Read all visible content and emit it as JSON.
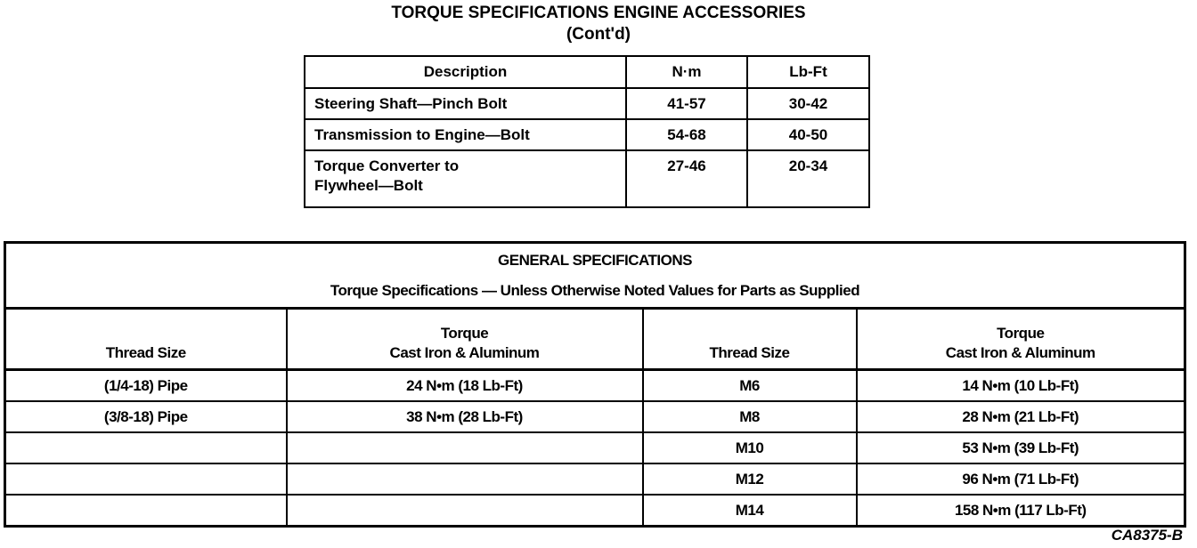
{
  "title": {
    "line1": "TORQUE SPECIFICATIONS ENGINE ACCESSORIES",
    "line2": "(Cont'd)"
  },
  "accessories": {
    "headers": [
      "Description",
      "N·m",
      "Lb-Ft"
    ],
    "rows": [
      {
        "description": "Steering Shaft—Pinch Bolt",
        "nm": "41-57",
        "lbft": "30-42"
      },
      {
        "description": "Transmission to Engine—Bolt",
        "nm": "54-68",
        "lbft": "40-50"
      },
      {
        "description": "Torque Converter to Flywheel—Bolt",
        "nm": "27-46",
        "lbft": "20-34"
      }
    ]
  },
  "general": {
    "title": "GENERAL SPECIFICATIONS",
    "subtitle": "Torque Specifications — Unless Otherwise Noted Values for Parts as Supplied",
    "headers": {
      "thread": "Thread Size",
      "torque1": "Torque",
      "torque2": "Cast Iron & Aluminum"
    },
    "rows": [
      {
        "t1": "(1/4-18) Pipe",
        "v1": "24 N•m (18 Lb-Ft)",
        "t2": "M6",
        "v2": "14 N•m (10 Lb-Ft)"
      },
      {
        "t1": "(3/8-18) Pipe",
        "v1": "38 N•m (28 Lb-Ft)",
        "t2": "M8",
        "v2": "28 N•m (21 Lb-Ft)"
      },
      {
        "t1": "",
        "v1": "",
        "t2": "M10",
        "v2": "53 N•m (39 Lb-Ft)"
      },
      {
        "t1": "",
        "v1": "",
        "t2": "M12",
        "v2": "96 N•m (71 Lb-Ft)"
      },
      {
        "t1": "",
        "v1": "",
        "t2": "M14",
        "v2": "158 N•m (117 Lb-Ft)"
      }
    ]
  },
  "figure_code": "CA8375-B"
}
